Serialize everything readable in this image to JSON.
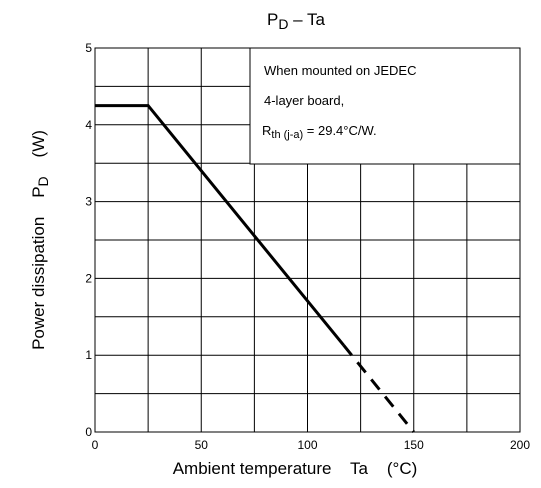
{
  "chart_data": {
    "type": "line",
    "title": "P",
    "title_sub": "D",
    "title_rest": " – Ta",
    "xlabel": "Ambient temperature    Ta    (°C)",
    "ylabel_main": "Power dissipation    P",
    "ylabel_sub": "D",
    "ylabel_unit": "    (W)",
    "xlim": [
      0,
      200
    ],
    "ylim": [
      0,
      5
    ],
    "x_ticks": [
      "0",
      "50",
      "100",
      "150",
      "200"
    ],
    "y_ticks": [
      "0",
      "1",
      "2",
      "3",
      "4",
      "5"
    ],
    "grid": true,
    "series": [
      {
        "solid": {
          "x": [
            0,
            25,
            117
          ],
          "y": [
            4.25,
            4.25,
            1.13
          ]
        },
        "dashed": {
          "x": [
            117,
            150
          ],
          "y": [
            1.13,
            0
          ]
        }
      }
    ],
    "annotation": {
      "line1": "When mounted on JEDEC",
      "line2": "4-layer board,",
      "line3_a": "R",
      "line3_sub": "th (j-a)",
      "line3_b": " = 29.4°C/W."
    }
  }
}
